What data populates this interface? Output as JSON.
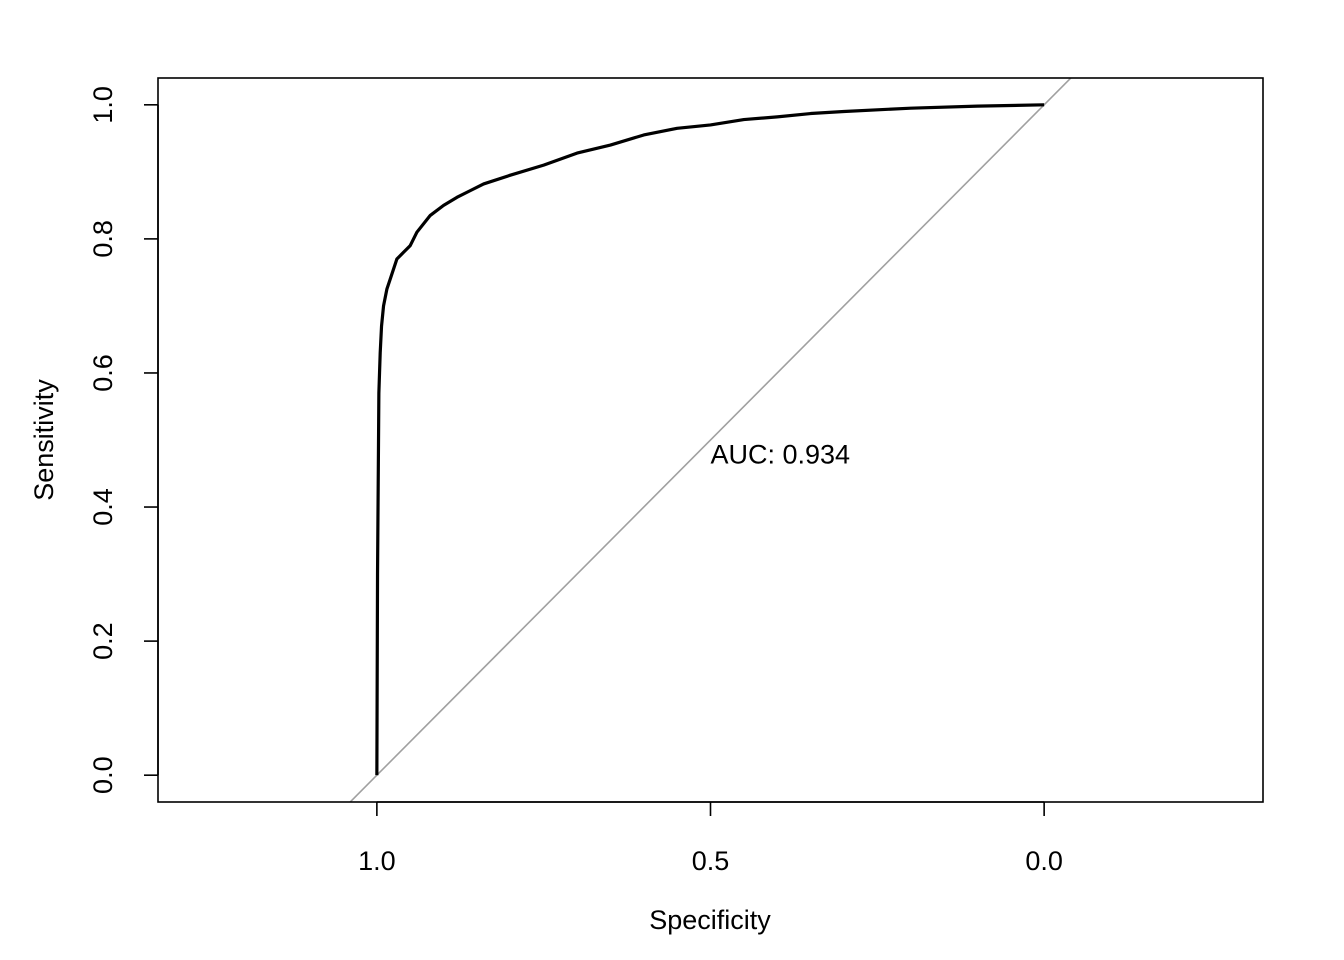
{
  "chart_data": {
    "type": "line",
    "title": "",
    "xlabel": "Specificity",
    "ylabel": "Sensitivity",
    "x_reversed": true,
    "xlim": [
      1.328,
      -0.328
    ],
    "ylim": [
      -0.04,
      1.04
    ],
    "x_ticks": [
      {
        "value": 1.0,
        "label": "1.0"
      },
      {
        "value": 0.5,
        "label": "0.5"
      },
      {
        "value": 0.0,
        "label": "0.0"
      }
    ],
    "y_ticks": [
      {
        "value": 0.0,
        "label": "0.0"
      },
      {
        "value": 0.2,
        "label": "0.2"
      },
      {
        "value": 0.4,
        "label": "0.4"
      },
      {
        "value": 0.6,
        "label": "0.6"
      },
      {
        "value": 0.8,
        "label": "0.8"
      },
      {
        "value": 1.0,
        "label": "1.0"
      }
    ],
    "grid": false,
    "series": [
      {
        "color": "#000000",
        "x": [
          1.0,
          0.999,
          0.997,
          0.996,
          0.995,
          0.993,
          0.99,
          0.985,
          0.98,
          0.97,
          0.96,
          0.95,
          0.94,
          0.92,
          0.9,
          0.88,
          0.86,
          0.84,
          0.8,
          0.75,
          0.7,
          0.65,
          0.6,
          0.55,
          0.5,
          0.45,
          0.4,
          0.35,
          0.3,
          0.2,
          0.1,
          0.0
        ],
        "y": [
          0.0,
          0.3,
          0.57,
          0.6,
          0.63,
          0.67,
          0.7,
          0.725,
          0.74,
          0.77,
          0.78,
          0.79,
          0.81,
          0.835,
          0.85,
          0.862,
          0.872,
          0.882,
          0.895,
          0.91,
          0.928,
          0.94,
          0.955,
          0.965,
          0.97,
          0.978,
          0.982,
          0.987,
          0.99,
          0.995,
          0.998,
          1.0
        ]
      }
    ],
    "reference_line": {
      "from": [
        1.0,
        0.0
      ],
      "to": [
        0.0,
        1.0
      ],
      "color": "#a0a0a0"
    },
    "annotation": {
      "text": "AUC: 0.934",
      "x": 0.5,
      "y": 0.48
    }
  }
}
